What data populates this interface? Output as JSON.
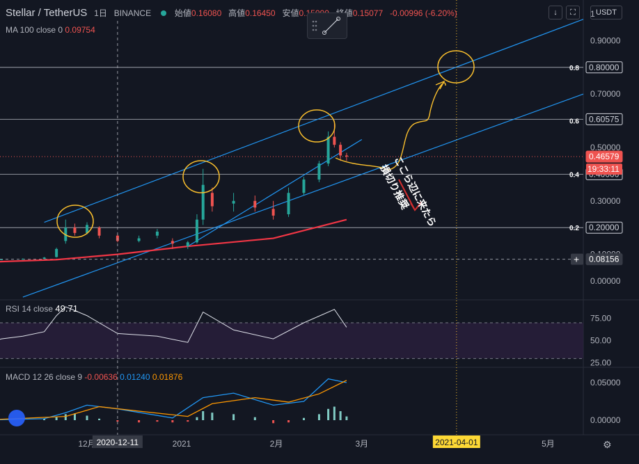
{
  "header": {
    "symbol": "Stellar / TetherUS",
    "interval": "1日",
    "exchange": "BINANCE",
    "open_label": "始値",
    "open": "0.16080",
    "high_label": "高値",
    "high": "0.16450",
    "low_label": "安値",
    "low": "0.15000",
    "close_label": "終値",
    "close": "0.15077",
    "change": "-0.00996 (-6.20%)"
  },
  "ma_legend": {
    "label": "MA 100 close 0",
    "value": "0.09754"
  },
  "rsi_legend": {
    "label": "RSI 14 close",
    "value": "49.71"
  },
  "macd_legend": {
    "label": "MACD 12 26 close 9",
    "hist": "-0.00636",
    "macd": "0.01240",
    "signal": "0.01876"
  },
  "toolbar": {
    "down_icon": "↓",
    "fullscreen_icon": "⛶",
    "currency": "USDT"
  },
  "colors": {
    "bg": "#131722",
    "up": "#26a69a",
    "down": "#ef5350",
    "channel": "#2196f3",
    "ma": "#f23645",
    "annotation": "#fbc02d",
    "arrow": "#d32f2f"
  },
  "fib_labels": [
    "0.8",
    "0.6",
    "0.4",
    "0.2"
  ],
  "price_badges": {
    "level_08": "0.80000",
    "level_06": "0.60575",
    "level_04": "0.40000",
    "level_02": "0.20000",
    "last": "0.46579",
    "countdown": "19:33:11",
    "crosshair": "0.08156"
  },
  "annotation_text": [
    "ここら辺に来たら",
    "損切り推奨"
  ],
  "x_labels": [
    "12月",
    "2021",
    "2月",
    "3月",
    "5月"
  ],
  "x_highlight": {
    "crosshair_date": "2020-12-11",
    "target_date": "2021-04-01"
  },
  "chart_data": [
    {
      "type": "candlestick",
      "title": "Stellar / TetherUS 1日 BINANCE",
      "yticks": [
        0.0,
        0.1,
        0.2,
        0.3,
        0.4,
        0.5,
        0.6,
        0.7,
        0.8,
        0.9,
        1.0
      ],
      "ytick_labels": [
        "0.00000",
        "0.10000",
        "0.20000",
        "0.30000",
        "0.40000",
        "0.50000",
        "0.60000",
        "0.70000",
        "0.80000",
        "0.90000",
        "1"
      ],
      "ylim": [
        -0.02,
        1.02
      ],
      "x_range": [
        "2020-10-27",
        "2021-05-20"
      ],
      "candles": [
        {
          "x": "2020-10-27",
          "o": 0.078,
          "h": 0.081,
          "l": 0.077,
          "c": 0.08
        },
        {
          "x": "2020-11-03",
          "o": 0.08,
          "h": 0.082,
          "l": 0.078,
          "c": 0.081
        },
        {
          "x": "2020-11-10",
          "o": 0.081,
          "h": 0.085,
          "l": 0.08,
          "c": 0.083
        },
        {
          "x": "2020-11-17",
          "o": 0.083,
          "h": 0.09,
          "l": 0.082,
          "c": 0.088
        },
        {
          "x": "2020-11-21",
          "o": 0.09,
          "h": 0.125,
          "l": 0.088,
          "c": 0.12
        },
        {
          "x": "2020-11-24",
          "o": 0.15,
          "h": 0.23,
          "l": 0.14,
          "c": 0.2
        },
        {
          "x": "2020-11-27",
          "o": 0.2,
          "h": 0.215,
          "l": 0.17,
          "c": 0.18
        },
        {
          "x": "2020-12-01",
          "o": 0.18,
          "h": 0.22,
          "l": 0.175,
          "c": 0.21
        },
        {
          "x": "2020-12-05",
          "o": 0.2,
          "h": 0.205,
          "l": 0.16,
          "c": 0.17
        },
        {
          "x": "2020-12-11",
          "o": 0.17,
          "h": 0.175,
          "l": 0.145,
          "c": 0.15
        },
        {
          "x": "2020-12-18",
          "o": 0.15,
          "h": 0.17,
          "l": 0.145,
          "c": 0.16
        },
        {
          "x": "2020-12-24",
          "o": 0.17,
          "h": 0.195,
          "l": 0.16,
          "c": 0.185
        },
        {
          "x": "2020-12-29",
          "o": 0.15,
          "h": 0.16,
          "l": 0.12,
          "c": 0.14
        },
        {
          "x": "2021-01-03",
          "o": 0.13,
          "h": 0.15,
          "l": 0.12,
          "c": 0.145
        },
        {
          "x": "2021-01-06",
          "o": 0.145,
          "h": 0.25,
          "l": 0.14,
          "c": 0.23
        },
        {
          "x": "2021-01-08",
          "o": 0.23,
          "h": 0.42,
          "l": 0.21,
          "c": 0.36
        },
        {
          "x": "2021-01-11",
          "o": 0.33,
          "h": 0.35,
          "l": 0.26,
          "c": 0.28
        },
        {
          "x": "2021-01-18",
          "o": 0.29,
          "h": 0.33,
          "l": 0.26,
          "c": 0.3
        },
        {
          "x": "2021-01-25",
          "o": 0.3,
          "h": 0.32,
          "l": 0.26,
          "c": 0.275
        },
        {
          "x": "2021-01-31",
          "o": 0.27,
          "h": 0.3,
          "l": 0.23,
          "c": 0.245
        },
        {
          "x": "2021-02-05",
          "o": 0.25,
          "h": 0.35,
          "l": 0.24,
          "c": 0.33
        },
        {
          "x": "2021-02-10",
          "o": 0.33,
          "h": 0.39,
          "l": 0.32,
          "c": 0.38
        },
        {
          "x": "2021-02-15",
          "o": 0.38,
          "h": 0.45,
          "l": 0.37,
          "c": 0.44
        },
        {
          "x": "2021-02-18",
          "o": 0.44,
          "h": 0.56,
          "l": 0.43,
          "c": 0.54
        },
        {
          "x": "2021-02-20",
          "o": 0.54,
          "h": 0.6,
          "l": 0.5,
          "c": 0.51
        },
        {
          "x": "2021-02-22",
          "o": 0.51,
          "h": 0.52,
          "l": 0.45,
          "c": 0.47
        },
        {
          "x": "2021-02-24",
          "o": 0.47,
          "h": 0.48,
          "l": 0.45,
          "c": 0.466
        }
      ],
      "ma100": [
        {
          "x": "2020-10-27",
          "y": 0.07
        },
        {
          "x": "2020-11-21",
          "y": 0.08
        },
        {
          "x": "2020-12-11",
          "y": 0.1
        },
        {
          "x": "2021-01-03",
          "y": 0.13
        },
        {
          "x": "2021-01-31",
          "y": 0.16
        },
        {
          "x": "2021-02-24",
          "y": 0.23
        }
      ],
      "horizontal_levels": [
        0.8,
        0.60575,
        0.4,
        0.2
      ]
    },
    {
      "type": "line",
      "name": "RSI 14",
      "yticks": [
        25,
        50,
        75
      ],
      "ytick_labels": [
        "25.00",
        "50.00",
        "75.00"
      ],
      "ylim": [
        20,
        100
      ],
      "band": [
        30,
        70
      ],
      "points": [
        {
          "x": "2020-10-27",
          "y": 45
        },
        {
          "x": "2020-11-03",
          "y": 52
        },
        {
          "x": "2020-11-10",
          "y": 55
        },
        {
          "x": "2020-11-17",
          "y": 60
        },
        {
          "x": "2020-11-21",
          "y": 78
        },
        {
          "x": "2020-11-24",
          "y": 88
        },
        {
          "x": "2020-12-01",
          "y": 78
        },
        {
          "x": "2020-12-11",
          "y": 58
        },
        {
          "x": "2020-12-24",
          "y": 55
        },
        {
          "x": "2021-01-03",
          "y": 48
        },
        {
          "x": "2021-01-08",
          "y": 82
        },
        {
          "x": "2021-01-18",
          "y": 62
        },
        {
          "x": "2021-01-31",
          "y": 52
        },
        {
          "x": "2021-02-10",
          "y": 70
        },
        {
          "x": "2021-02-20",
          "y": 85
        },
        {
          "x": "2021-02-24",
          "y": 65
        }
      ]
    },
    {
      "type": "bar",
      "name": "MACD 12 26 9",
      "yticks": [
        0.0,
        0.05
      ],
      "ytick_labels": [
        "0.00000",
        "0.05000"
      ],
      "ylim": [
        -0.012,
        0.065
      ],
      "macd": [
        {
          "x": "2020-10-27",
          "y": 0.0
        },
        {
          "x": "2020-11-17",
          "y": 0.002
        },
        {
          "x": "2020-11-24",
          "y": 0.01
        },
        {
          "x": "2020-12-01",
          "y": 0.02
        },
        {
          "x": "2020-12-11",
          "y": 0.015
        },
        {
          "x": "2020-12-29",
          "y": 0.003
        },
        {
          "x": "2021-01-08",
          "y": 0.03
        },
        {
          "x": "2021-01-18",
          "y": 0.036
        },
        {
          "x": "2021-01-31",
          "y": 0.02
        },
        {
          "x": "2021-02-10",
          "y": 0.025
        },
        {
          "x": "2021-02-18",
          "y": 0.055
        },
        {
          "x": "2021-02-24",
          "y": 0.05
        }
      ],
      "signal": [
        {
          "x": "2020-10-27",
          "y": 0.0
        },
        {
          "x": "2020-11-24",
          "y": 0.005
        },
        {
          "x": "2020-12-05",
          "y": 0.018
        },
        {
          "x": "2020-12-18",
          "y": 0.012
        },
        {
          "x": "2021-01-03",
          "y": 0.005
        },
        {
          "x": "2021-01-11",
          "y": 0.022
        },
        {
          "x": "2021-01-25",
          "y": 0.03
        },
        {
          "x": "2021-02-05",
          "y": 0.024
        },
        {
          "x": "2021-02-15",
          "y": 0.035
        },
        {
          "x": "2021-02-24",
          "y": 0.053
        }
      ],
      "histogram": [
        {
          "x": "2020-11-17",
          "y": 0.002
        },
        {
          "x": "2020-11-21",
          "y": 0.004
        },
        {
          "x": "2020-11-24",
          "y": 0.008
        },
        {
          "x": "2020-11-27",
          "y": 0.009
        },
        {
          "x": "2020-12-01",
          "y": 0.006
        },
        {
          "x": "2020-12-05",
          "y": 0.002
        },
        {
          "x": "2020-12-11",
          "y": -0.002
        },
        {
          "x": "2020-12-18",
          "y": -0.003
        },
        {
          "x": "2020-12-24",
          "y": -0.002
        },
        {
          "x": "2020-12-29",
          "y": -0.003
        },
        {
          "x": "2021-01-03",
          "y": -0.002
        },
        {
          "x": "2021-01-06",
          "y": 0.004
        },
        {
          "x": "2021-01-08",
          "y": 0.012
        },
        {
          "x": "2021-01-11",
          "y": 0.01
        },
        {
          "x": "2021-01-18",
          "y": 0.008
        },
        {
          "x": "2021-01-25",
          "y": 0.004
        },
        {
          "x": "2021-01-31",
          "y": -0.004
        },
        {
          "x": "2021-02-05",
          "y": -0.003
        },
        {
          "x": "2021-02-10",
          "y": 0.003
        },
        {
          "x": "2021-02-15",
          "y": 0.008
        },
        {
          "x": "2021-02-18",
          "y": 0.015
        },
        {
          "x": "2021-02-20",
          "y": 0.018
        },
        {
          "x": "2021-02-22",
          "y": 0.012
        },
        {
          "x": "2021-02-24",
          "y": 0.005
        }
      ]
    }
  ]
}
